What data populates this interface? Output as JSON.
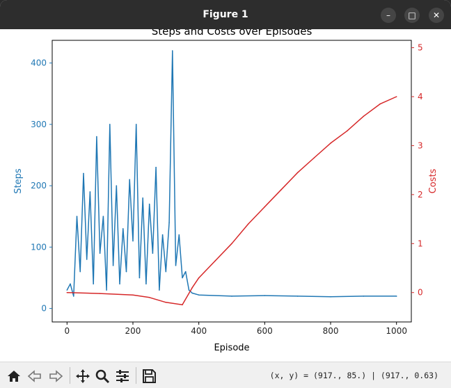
{
  "window": {
    "title": "Figure 1",
    "minimize_icon": "minimize-icon",
    "maximize_icon": "maximize-icon",
    "close_icon": "close-icon"
  },
  "toolbar": {
    "tools": [
      "home-icon",
      "back-arrow-icon",
      "forward-arrow-icon",
      "pan-icon",
      "zoom-icon",
      "configure-subplots-icon",
      "save-icon"
    ],
    "coords": "(x, y) = (917., 85.) | (917., 0.63)"
  },
  "chart_data": {
    "type": "line",
    "title": "Steps and Costs over Episodes",
    "xlabel": "Episode",
    "ylabel_left": "Steps",
    "ylabel_right": "Costs",
    "xlim": [
      -45,
      1045
    ],
    "ylim_left": [
      -22,
      437
    ],
    "ylim_right": [
      -0.6,
      5.15
    ],
    "xticks": [
      0,
      200,
      400,
      600,
      800,
      1000
    ],
    "yticks_left": [
      0,
      100,
      200,
      300,
      400
    ],
    "yticks_right": [
      0,
      1,
      2,
      3,
      4,
      5
    ],
    "grid": false,
    "colors": {
      "steps": "#1f77b4",
      "costs": "#d62728",
      "axes": "#000000"
    },
    "series": [
      {
        "name": "Steps",
        "axis": "left",
        "color": "#1f77b4",
        "x": [
          0,
          10,
          20,
          30,
          40,
          50,
          60,
          70,
          80,
          90,
          100,
          110,
          120,
          130,
          140,
          150,
          160,
          170,
          180,
          190,
          200,
          210,
          220,
          230,
          240,
          250,
          260,
          270,
          280,
          290,
          300,
          310,
          320,
          330,
          340,
          350,
          360,
          370,
          380,
          400,
          500,
          600,
          700,
          800,
          900,
          1000
        ],
        "y": [
          30,
          40,
          20,
          150,
          60,
          220,
          80,
          190,
          40,
          280,
          90,
          150,
          30,
          300,
          70,
          200,
          40,
          130,
          60,
          210,
          110,
          300,
          50,
          180,
          40,
          170,
          90,
          230,
          30,
          120,
          60,
          140,
          420,
          70,
          120,
          50,
          60,
          30,
          25,
          22,
          20,
          21,
          20,
          19,
          20,
          20
        ]
      },
      {
        "name": "Costs",
        "axis": "right",
        "color": "#d62728",
        "x": [
          0,
          100,
          200,
          250,
          300,
          350,
          380,
          400,
          450,
          500,
          550,
          600,
          650,
          700,
          750,
          800,
          850,
          900,
          950,
          1000
        ],
        "y": [
          0,
          -0.02,
          -0.05,
          -0.1,
          -0.2,
          -0.25,
          0.1,
          0.3,
          0.65,
          1.0,
          1.4,
          1.75,
          2.1,
          2.45,
          2.75,
          3.05,
          3.3,
          3.6,
          3.85,
          4.0
        ]
      }
    ]
  }
}
